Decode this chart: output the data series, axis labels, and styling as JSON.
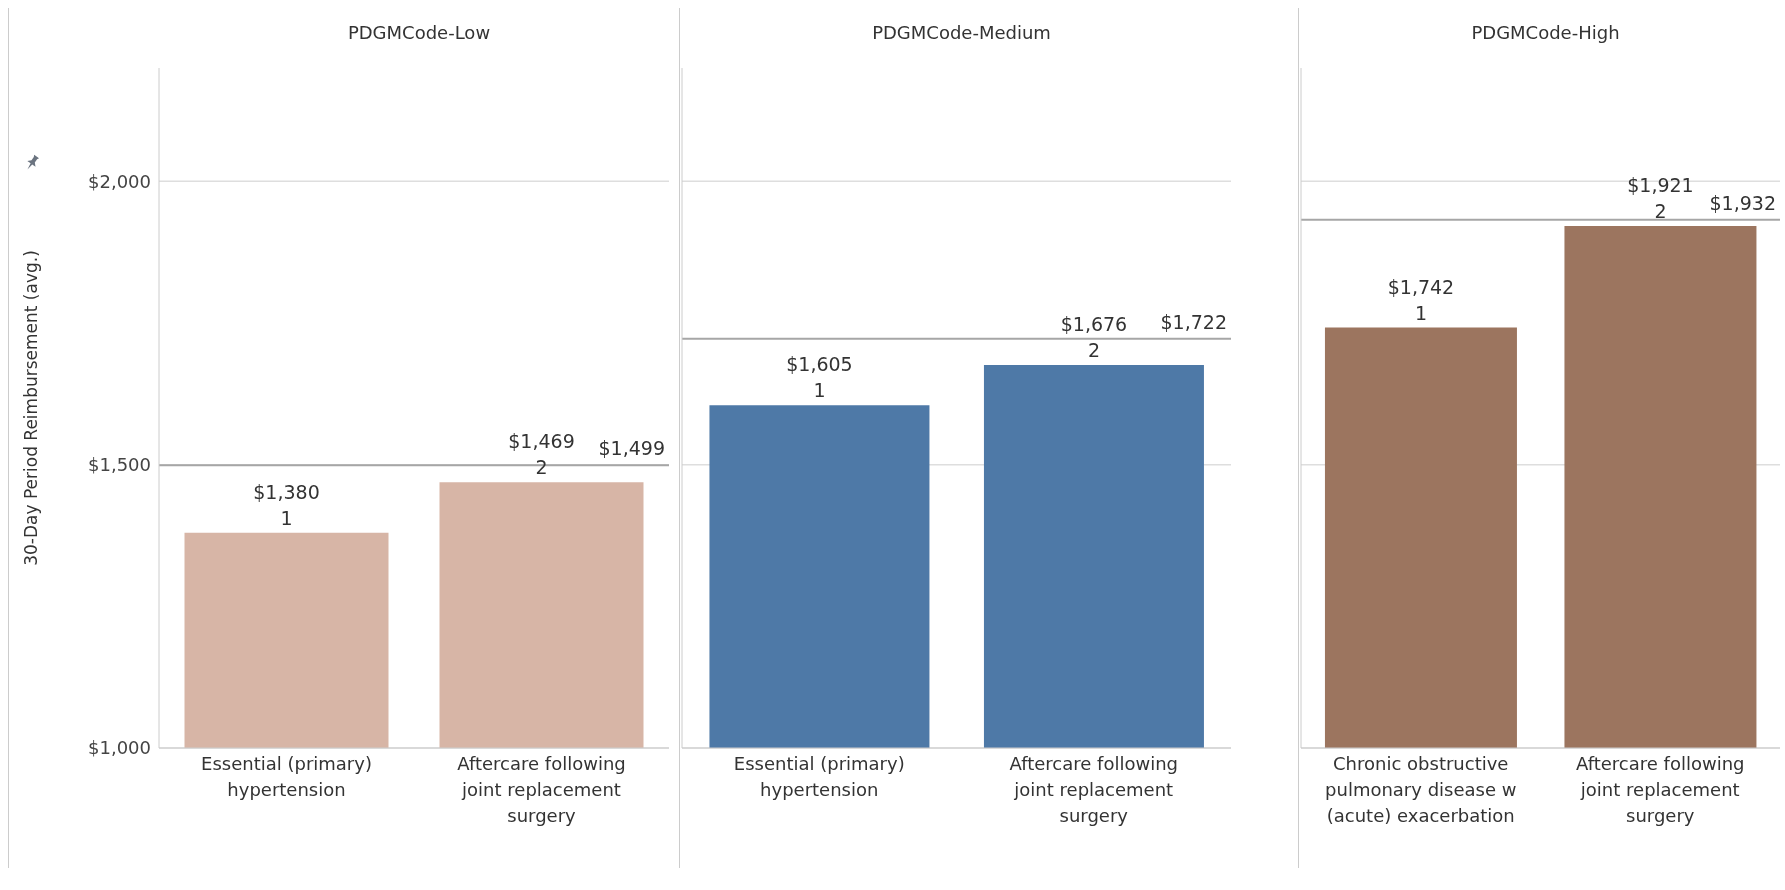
{
  "chart_data": [
    {
      "type": "bar",
      "title": "PDGMCode-Low",
      "ylabel": "30-Day Period Reimbursement (avg.)",
      "categories": [
        "Essential (primary) hypertension",
        "Aftercare following joint replacement surgery"
      ],
      "values": [
        1380,
        1469
      ],
      "colors": [
        "#d7b5a6",
        "#d7b5a6"
      ],
      "value_labels": [
        "$1,380\n1",
        "$1,469\n2"
      ],
      "ylim": [
        1000,
        2200
      ],
      "yticks": [
        {
          "value": 1000,
          "label": "$1,000"
        },
        {
          "value": 1500,
          "label": "$1,500"
        },
        {
          "value": 2000,
          "label": "$2,000"
        }
      ],
      "grid": "y",
      "ref_lines": [
        {
          "axis": "y",
          "value": 1499,
          "label": "$1,499",
          "color": "#a6a6a6"
        }
      ]
    },
    {
      "type": "bar",
      "title": "PDGMCode-Medium",
      "categories": [
        "Essential (primary) hypertension",
        "Aftercare following joint replacement surgery"
      ],
      "values": [
        1605,
        1676
      ],
      "colors": [
        "#4e79a7",
        "#4e79a7"
      ],
      "value_labels": [
        "$1,605\n1",
        "$1,676\n2"
      ],
      "ylim": [
        1000,
        2200
      ],
      "yticks": [
        1000,
        1500,
        2000
      ],
      "grid": "y",
      "tick_labels": "x",
      "ref_lines": [
        {
          "axis": "y",
          "value": 1722,
          "label": "$1,722",
          "color": "#a6a6a6"
        }
      ]
    },
    {
      "type": "bar",
      "title": "PDGMCode-High",
      "categories": [
        "Chronic obstructive pulmonary disease w (acute) exacerbation",
        "Aftercare following joint replacement surgery"
      ],
      "values": [
        1742,
        1921
      ],
      "colors": [
        "#9c755f",
        "#9c755f"
      ],
      "value_labels": [
        "$1,742\n1",
        "$1,921\n2"
      ],
      "ylim": [
        1000,
        2200
      ],
      "yticks": [
        1000,
        1500,
        2000
      ],
      "grid": "y",
      "tick_labels": "x",
      "ref_lines": [
        {
          "axis": "y",
          "value": 1932,
          "label": "$1,932",
          "color": "#a6a6a6"
        }
      ]
    }
  ]
}
